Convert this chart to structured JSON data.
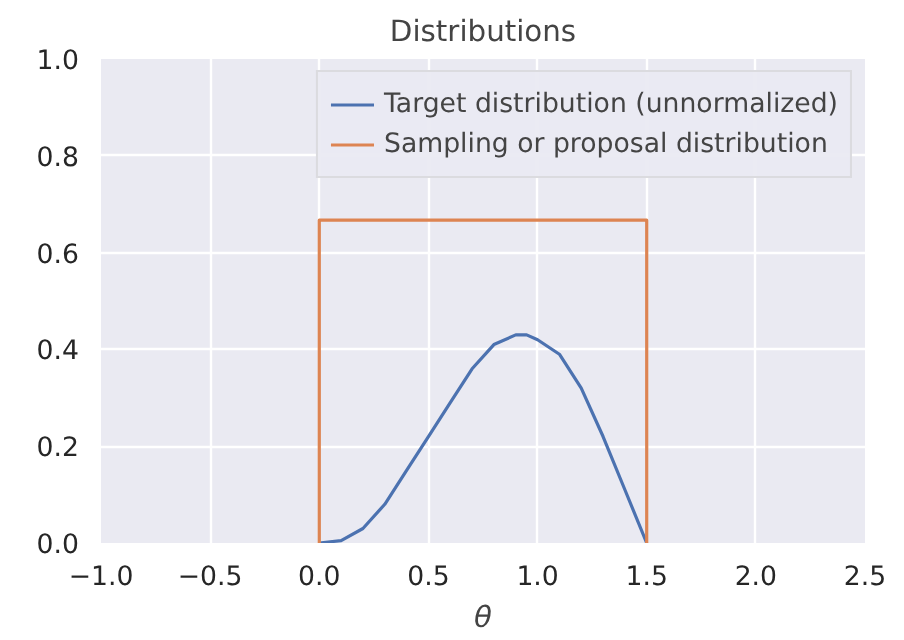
{
  "chart_data": {
    "type": "line",
    "title": "Distributions",
    "xlabel": "θ",
    "xlim": [
      -1,
      2.5
    ],
    "xticks": [
      {
        "value": -1,
        "label": "−1.0"
      },
      {
        "value": -0.5,
        "label": "−0.5"
      },
      {
        "value": 0,
        "label": "0.0"
      },
      0.5,
      {
        "value": 1,
        "label": "1.0"
      },
      1.5,
      {
        "value": 2,
        "label": "2.0"
      },
      2.5
    ],
    "ylim": [
      0,
      1
    ],
    "yticks": [
      {
        "value": 0,
        "label": "0.0"
      },
      0.2,
      0.4,
      0.6,
      0.8,
      {
        "value": 1,
        "label": "1.0"
      }
    ],
    "grid": true,
    "legend": "top right",
    "series": [
      {
        "name": "Target distribution (unnormalized)",
        "color": "#4c72b0",
        "x": [
          0,
          0.1,
          0.2,
          0.3,
          0.4,
          0.5,
          0.6,
          0.7,
          0.8,
          0.9,
          0.95,
          1.0,
          1.1,
          1.2,
          1.3,
          1.4,
          1.5
        ],
        "values": [
          0,
          0.005,
          0.03,
          0.08,
          0.15,
          0.22,
          0.29,
          0.36,
          0.41,
          0.43,
          0.43,
          0.42,
          0.39,
          0.32,
          0.22,
          0.11,
          0
        ]
      },
      {
        "name": "Sampling or proposal distribution",
        "color": "#dd8452",
        "x": [
          0,
          0,
          1.5,
          1.5
        ],
        "values": [
          0,
          0.667,
          0.667,
          0
        ]
      }
    ]
  }
}
